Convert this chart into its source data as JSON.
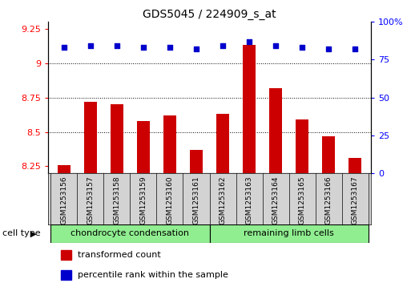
{
  "title": "GDS5045 / 224909_s_at",
  "samples": [
    "GSM1253156",
    "GSM1253157",
    "GSM1253158",
    "GSM1253159",
    "GSM1253160",
    "GSM1253161",
    "GSM1253162",
    "GSM1253163",
    "GSM1253164",
    "GSM1253165",
    "GSM1253166",
    "GSM1253167"
  ],
  "transformed_count": [
    8.26,
    8.72,
    8.7,
    8.58,
    8.62,
    8.37,
    8.63,
    9.13,
    8.82,
    8.59,
    8.47,
    8.31
  ],
  "percentile_rank": [
    83,
    84,
    84,
    83,
    83,
    82,
    84,
    87,
    84,
    83,
    82,
    82
  ],
  "ylim_left": [
    8.2,
    9.3
  ],
  "ylim_right": [
    0,
    100
  ],
  "yticks_left": [
    8.25,
    8.5,
    8.75,
    9.0,
    9.25
  ],
  "yticks_right": [
    0,
    25,
    50,
    75,
    100
  ],
  "ytick_labels_left": [
    "8.25",
    "8.5",
    "8.75",
    "9",
    "9.25"
  ],
  "ytick_labels_right": [
    "0",
    "25",
    "50",
    "75",
    "100%"
  ],
  "grid_values": [
    8.5,
    8.75,
    9.0
  ],
  "bar_color": "#cc0000",
  "dot_color": "#0000cc",
  "bar_bottom": 8.2,
  "group1_label": "chondrocyte condensation",
  "group2_label": "remaining limb cells",
  "group1_samples": 6,
  "group2_samples": 6,
  "cell_type_label": "cell type",
  "legend_bar_label": "transformed count",
  "legend_dot_label": "percentile rank within the sample",
  "sample_bg_color": "#d3d3d3",
  "group_color": "#90ee90",
  "plot_bg": "#ffffff"
}
